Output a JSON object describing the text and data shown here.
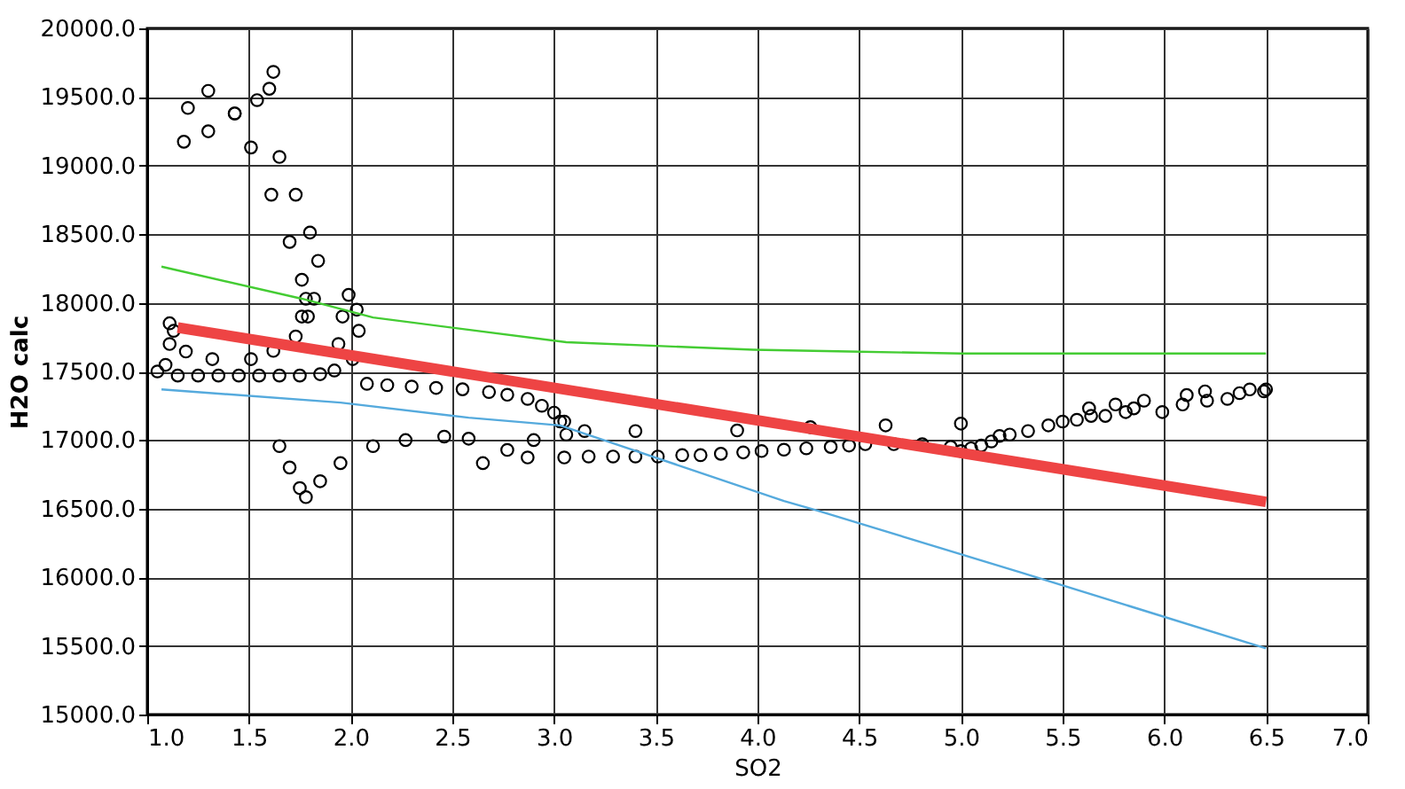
{
  "chart_data": {
    "type": "scatter",
    "xlabel": "SO2",
    "ylabel": "H2O calc",
    "xlim": [
      1.0,
      7.0
    ],
    "xticks": [
      {
        "value": 1.0,
        "label": "1.0"
      },
      {
        "value": 1.5,
        "label": "1.5"
      },
      {
        "value": 2.0,
        "label": "2.0"
      },
      {
        "value": 2.5,
        "label": "2.5"
      },
      {
        "value": 3.0,
        "label": "3.0"
      },
      {
        "value": 3.5,
        "label": "3.5"
      },
      {
        "value": 4.0,
        "label": "4.0"
      },
      {
        "value": 4.5,
        "label": "4.5"
      },
      {
        "value": 5.0,
        "label": "5.0"
      },
      {
        "value": 5.5,
        "label": "5.5"
      },
      {
        "value": 6.0,
        "label": "6.0"
      },
      {
        "value": 6.5,
        "label": "6.5"
      },
      {
        "value": 7.0,
        "label": "7.0"
      }
    ],
    "ylim": [
      15000,
      20000
    ],
    "yticks": [
      {
        "value": 15000,
        "label": "15000.0"
      },
      {
        "value": 15500,
        "label": "15500.0"
      },
      {
        "value": 16000,
        "label": "16000.0"
      },
      {
        "value": 16500,
        "label": "16500.0"
      },
      {
        "value": 17000,
        "label": "17000.0"
      },
      {
        "value": 17500,
        "label": "17500.0"
      },
      {
        "value": 18000,
        "label": "18000.0"
      },
      {
        "value": 18500,
        "label": "18500.0"
      },
      {
        "value": 19000,
        "label": "19000.0"
      },
      {
        "value": 19500,
        "label": "19500.0"
      },
      {
        "value": 20000,
        "label": "20000.0"
      }
    ],
    "grid": true,
    "series": [
      {
        "color": "#000000",
        "marker": "circle",
        "x": [
          1.09,
          1.11,
          1.11,
          1.13,
          1.19,
          1.32,
          1.51,
          1.62,
          1.73,
          1.76,
          1.78,
          1.76,
          1.7,
          1.61,
          1.51,
          1.43,
          1.3,
          1.2,
          1.18,
          1.3,
          1.43,
          1.54,
          1.62,
          1.6,
          1.65,
          1.73,
          1.8,
          1.84,
          1.82,
          1.79,
          1.05,
          1.15,
          1.25,
          1.35,
          1.45,
          1.55,
          1.65,
          1.75,
          1.85,
          1.92,
          2.01,
          2.04,
          2.03,
          1.99,
          1.96,
          1.94,
          2.08,
          2.18,
          2.3,
          2.42,
          2.55,
          2.68,
          2.77,
          2.87,
          2.94,
          3.0,
          3.05,
          3.06,
          3.15,
          3.4,
          3.9,
          4.26,
          4.63,
          1.65,
          1.7,
          1.75,
          1.78,
          1.85,
          1.95,
          2.11,
          2.27,
          2.46,
          2.58,
          2.65,
          2.77,
          2.9,
          3.03,
          2.87,
          3.05,
          3.17,
          3.29,
          3.4,
          3.51,
          3.63,
          3.72,
          3.82,
          3.93,
          4.02,
          4.13,
          4.24,
          4.36,
          4.45,
          4.53,
          4.67,
          4.81,
          4.95,
          5.0,
          5.05,
          5.1,
          5.15,
          5.19,
          5.24,
          5.33,
          5.43,
          5.5,
          5.57,
          5.64,
          5.63,
          5.71,
          5.76,
          5.81,
          5.85,
          5.9,
          5.99,
          6.09,
          6.11,
          6.21,
          6.2,
          6.31,
          6.37,
          6.42,
          6.49,
          6.5,
          5.0
        ],
        "values": [
          17548,
          17700,
          17851,
          17796,
          17645,
          17590,
          17590,
          17650,
          17755,
          17900,
          18030,
          18168,
          18444,
          18788,
          19132,
          19380,
          19545,
          19420,
          19174,
          19250,
          19380,
          19477,
          19683,
          19560,
          19063,
          18788,
          18512,
          18306,
          18030,
          17900,
          17500,
          17470,
          17470,
          17470,
          17470,
          17470,
          17470,
          17470,
          17480,
          17507,
          17590,
          17796,
          17950,
          18058,
          17900,
          17700,
          17410,
          17400,
          17390,
          17380,
          17370,
          17350,
          17330,
          17300,
          17250,
          17200,
          17135,
          17040,
          17066,
          17066,
          17070,
          17094,
          17107,
          16956,
          16800,
          16650,
          16584,
          16700,
          16832,
          16956,
          17000,
          17025,
          17010,
          16832,
          16928,
          17000,
          17135,
          16873,
          16873,
          16880,
          16880,
          16880,
          16880,
          16890,
          16890,
          16900,
          16910,
          16920,
          16930,
          16940,
          16950,
          16960,
          16970,
          16970,
          16970,
          16950,
          16920,
          16940,
          16960,
          16990,
          17030,
          17040,
          17066,
          17107,
          17135,
          17148,
          17176,
          17231,
          17176,
          17259,
          17204,
          17231,
          17287,
          17204,
          17259,
          17328,
          17287,
          17355,
          17300,
          17342,
          17369,
          17355,
          17369,
          17120
        ]
      },
      {
        "type": "line",
        "color": "#ee4444",
        "x": [
          1.15,
          6.5
        ],
        "values": [
          17820,
          16550
        ]
      },
      {
        "type": "line",
        "color": "#44cc33",
        "x": [
          1.07,
          1.76,
          2.11,
          3.06,
          3.98,
          4.45,
          5.0,
          6.5
        ],
        "values": [
          18264,
          18030,
          17893,
          17713,
          17658,
          17645,
          17631,
          17631
        ]
      },
      {
        "type": "line",
        "color": "#55aadd",
        "x": [
          1.07,
          1.95,
          2.58,
          3.03,
          4.13,
          4.29,
          5.3,
          6.5
        ],
        "values": [
          17369,
          17273,
          17163,
          17107,
          16556,
          16488,
          16033,
          15482
        ]
      }
    ]
  }
}
